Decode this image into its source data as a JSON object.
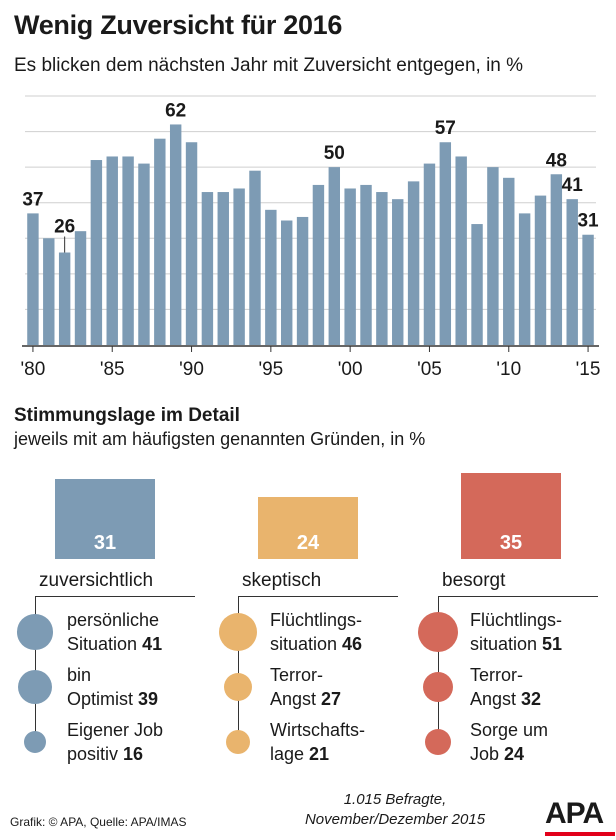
{
  "title": "Wenig Zuversicht für 2016",
  "subtitle": "Es blicken dem nächsten Jahr mit Zuversicht entgegen, in %",
  "chart_data": {
    "type": "bar",
    "title": "Wenig Zuversicht für 2016",
    "ylabel": "%",
    "ylim": [
      0,
      70
    ],
    "grid": true,
    "color": "#7d9bb4",
    "categories": [
      "1980",
      "1981",
      "1982",
      "1983",
      "1984",
      "1985",
      "1986",
      "1987",
      "1988",
      "1989",
      "1990",
      "1991",
      "1992",
      "1993",
      "1994",
      "1995",
      "1996",
      "1997",
      "1998",
      "1999",
      "2000",
      "2001",
      "2002",
      "2003",
      "2004",
      "2005",
      "2006",
      "2007",
      "2008",
      "2009",
      "2010",
      "2011",
      "2012",
      "2013",
      "2014",
      "2015"
    ],
    "values": [
      37,
      30,
      26,
      32,
      52,
      53,
      53,
      51,
      58,
      62,
      57,
      43,
      43,
      44,
      49,
      38,
      35,
      36,
      45,
      50,
      44,
      45,
      43,
      41,
      46,
      51,
      57,
      53,
      34,
      50,
      47,
      37,
      42,
      48,
      41,
      31
    ],
    "x_tick_labels": [
      "'80",
      "'85",
      "'90",
      "'95",
      "'00",
      "'05",
      "'10",
      "'15"
    ],
    "data_labels": [
      {
        "category": "1980",
        "label": "37"
      },
      {
        "category": "1982",
        "label": "26"
      },
      {
        "category": "1989",
        "label": "62"
      },
      {
        "category": "1999",
        "label": "50"
      },
      {
        "category": "2006",
        "label": "57"
      },
      {
        "category": "2013",
        "label": "48"
      },
      {
        "category": "2014",
        "label": "41"
      },
      {
        "category": "2015",
        "label": "31"
      }
    ]
  },
  "detail": {
    "title": "Stimmungslage im Detail",
    "subtitle": "jeweils mit am häufigsten genannten Gründen, in %",
    "categories": [
      {
        "label": "zuversichtlich",
        "value": "31",
        "color": "#7d9bb4",
        "reasons": [
          {
            "line1": "persönliche",
            "line2": "Situation",
            "value": "41"
          },
          {
            "line1": "bin",
            "line2": "Optimist",
            "value": "39"
          },
          {
            "line1": "Eigener Job",
            "line2": "positiv",
            "value": "16"
          }
        ]
      },
      {
        "label": "skeptisch",
        "value": "24",
        "color": "#e9b46d",
        "reasons": [
          {
            "line1": "Flüchtlings-",
            "line2": "situation",
            "value": "46"
          },
          {
            "line1": "Terror-",
            "line2": "Angst",
            "value": "27"
          },
          {
            "line1": "Wirtschafts-",
            "line2": "lage",
            "value": "21"
          }
        ]
      },
      {
        "label": "besorgt",
        "value": "35",
        "color": "#d4695a",
        "reasons": [
          {
            "line1": "Flüchtlings-",
            "line2": "situation",
            "value": "51"
          },
          {
            "line1": "Terror-",
            "line2": "Angst",
            "value": "32"
          },
          {
            "line1": "Sorge um",
            "line2": "Job",
            "value": "24"
          }
        ]
      }
    ]
  },
  "footer": {
    "source": "Grafik: © APA, Quelle: APA/IMAS",
    "note_line1": "1.015 Befragte,",
    "note_line2": "November/Dezember 2015",
    "logo": "APA"
  }
}
